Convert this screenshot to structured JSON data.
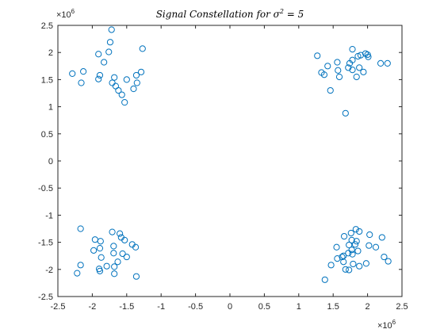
{
  "chart_data": {
    "type": "scatter",
    "title_prefix": "Signal Constellation for σ",
    "title_sup": "2",
    "title_suffix": " = 5",
    "xlabel": "",
    "ylabel": "",
    "xlim": [
      -2500000,
      2500000
    ],
    "ylim": [
      -2500000,
      2500000
    ],
    "x_ticks": [
      -2500000,
      -2000000,
      -1500000,
      -1000000,
      -500000,
      0,
      500000,
      1000000,
      1500000,
      2000000,
      2500000
    ],
    "x_tick_labels": [
      "-2.5",
      "-2",
      "-1.5",
      "-1",
      "-0.5",
      "0",
      "0.5",
      "1",
      "1.5",
      "2",
      "2.5"
    ],
    "y_ticks": [
      -2500000,
      -2000000,
      -1500000,
      -1000000,
      -500000,
      0,
      500000,
      1000000,
      1500000,
      2000000,
      2500000
    ],
    "y_tick_labels": [
      "-2.5",
      "-2",
      "-1.5",
      "-1",
      "-0.5",
      "0",
      "0.5",
      "1",
      "1.5",
      "2",
      "2.5"
    ],
    "x_exponent_base": "×10",
    "x_exponent_power": "6",
    "y_exponent_base": "×10",
    "y_exponent_power": "6",
    "grid": false,
    "marker": "circle-open",
    "marker_color": "#0072BD",
    "series": [
      {
        "points": [
          [
            -1720000,
            2420000
          ],
          [
            -1270000,
            2070000
          ],
          [
            -1740000,
            2190000
          ],
          [
            -1760000,
            2010000
          ],
          [
            -1910000,
            1970000
          ],
          [
            -1830000,
            1820000
          ],
          [
            -2290000,
            1610000
          ],
          [
            -2130000,
            1650000
          ],
          [
            -1890000,
            1580000
          ],
          [
            -1910000,
            1510000
          ],
          [
            -1680000,
            1540000
          ],
          [
            -1710000,
            1440000
          ],
          [
            -1360000,
            1580000
          ],
          [
            -1290000,
            1640000
          ],
          [
            -1500000,
            1500000
          ],
          [
            -1350000,
            1440000
          ],
          [
            -1660000,
            1380000
          ],
          [
            -1620000,
            1300000
          ],
          [
            -1400000,
            1330000
          ],
          [
            -1570000,
            1220000
          ],
          [
            -1530000,
            1080000
          ],
          [
            -2160000,
            1440000
          ],
          [
            1270000,
            1940000
          ],
          [
            1780000,
            2060000
          ],
          [
            1860000,
            1930000
          ],
          [
            1970000,
            1980000
          ],
          [
            1900000,
            1950000
          ],
          [
            2010000,
            1920000
          ],
          [
            1740000,
            1800000
          ],
          [
            1560000,
            1820000
          ],
          [
            1420000,
            1750000
          ],
          [
            1330000,
            1630000
          ],
          [
            1370000,
            1590000
          ],
          [
            1570000,
            1670000
          ],
          [
            1720000,
            1720000
          ],
          [
            1780000,
            1860000
          ],
          [
            1880000,
            1720000
          ],
          [
            1780000,
            1680000
          ],
          [
            1940000,
            1640000
          ],
          [
            1840000,
            1550000
          ],
          [
            2190000,
            1800000
          ],
          [
            2290000,
            1800000
          ],
          [
            1590000,
            1550000
          ],
          [
            1460000,
            1300000
          ],
          [
            1680000,
            880000
          ],
          [
            2000000,
            1960000
          ],
          [
            -2170000,
            -1250000
          ],
          [
            -1710000,
            -1310000
          ],
          [
            -1600000,
            -1340000
          ],
          [
            -1580000,
            -1410000
          ],
          [
            -1960000,
            -1450000
          ],
          [
            -1880000,
            -1480000
          ],
          [
            -1530000,
            -1460000
          ],
          [
            -1690000,
            -1570000
          ],
          [
            -1420000,
            -1540000
          ],
          [
            -1370000,
            -1590000
          ],
          [
            -1890000,
            -1610000
          ],
          [
            -1980000,
            -1650000
          ],
          [
            -1560000,
            -1710000
          ],
          [
            -1690000,
            -1700000
          ],
          [
            -1500000,
            -1770000
          ],
          [
            -1870000,
            -1780000
          ],
          [
            -1630000,
            -1860000
          ],
          [
            -2170000,
            -1920000
          ],
          [
            -1790000,
            -1940000
          ],
          [
            -1680000,
            -1950000
          ],
          [
            -1900000,
            -1990000
          ],
          [
            -2220000,
            -2070000
          ],
          [
            -1680000,
            -2080000
          ],
          [
            -1360000,
            -2130000
          ],
          [
            -1890000,
            -2030000
          ],
          [
            1830000,
            -1260000
          ],
          [
            1880000,
            -1300000
          ],
          [
            1760000,
            -1330000
          ],
          [
            1660000,
            -1390000
          ],
          [
            2210000,
            -1410000
          ],
          [
            2030000,
            -1360000
          ],
          [
            1770000,
            -1460000
          ],
          [
            1840000,
            -1480000
          ],
          [
            1730000,
            -1550000
          ],
          [
            1820000,
            -1540000
          ],
          [
            2020000,
            -1560000
          ],
          [
            2120000,
            -1590000
          ],
          [
            1550000,
            -1590000
          ],
          [
            1770000,
            -1640000
          ],
          [
            1860000,
            -1660000
          ],
          [
            1780000,
            -1720000
          ],
          [
            1650000,
            -1750000
          ],
          [
            1560000,
            -1800000
          ],
          [
            1630000,
            -1770000
          ],
          [
            1650000,
            -1860000
          ],
          [
            1470000,
            -1920000
          ],
          [
            1790000,
            -1900000
          ],
          [
            1880000,
            -1940000
          ],
          [
            1980000,
            -1890000
          ],
          [
            2240000,
            -1770000
          ],
          [
            2300000,
            -1850000
          ],
          [
            1730000,
            -2010000
          ],
          [
            1680000,
            -2000000
          ],
          [
            1380000,
            -2190000
          ],
          [
            1720000,
            -1700000
          ]
        ]
      }
    ]
  }
}
